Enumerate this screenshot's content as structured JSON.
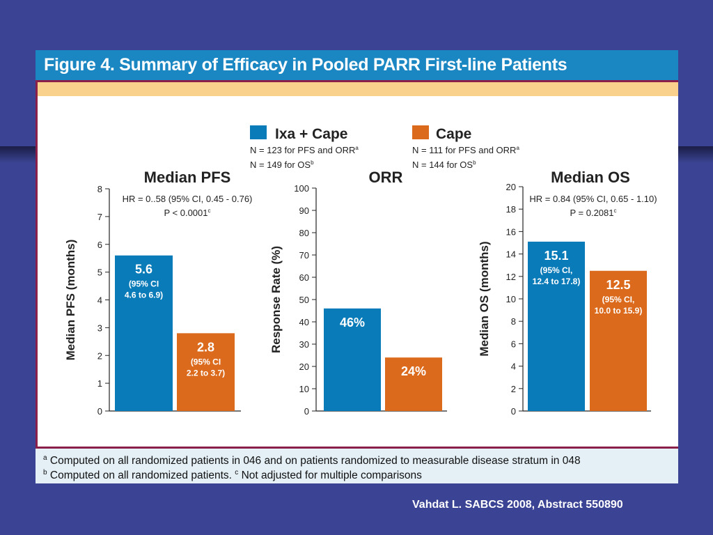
{
  "figure": {
    "title": "Figure 4. Summary of Efficacy in Pooled PARR First-line Patients",
    "footnote_a_mark": "a",
    "footnote_a": "Computed on all randomized patients in 046 and on patients randomized to measurable disease stratum in 048",
    "footnote_b_mark": "b",
    "footnote_b": "Computed on all randomized patients.",
    "footnote_c_mark": "c",
    "footnote_c": "Not adjusted for multiple comparisons"
  },
  "citation": "Vahdat L. SABCS 2008, Abstract 550890",
  "legend": {
    "series1": {
      "name": "Ixa + Cape",
      "note1": "N = 123 for PFS and ORR",
      "note1_mark": "a",
      "note2": "N = 149 for OS",
      "note2_mark": "b"
    },
    "series2": {
      "name": "Cape",
      "note1": "N = 111 for PFS and ORR",
      "note1_mark": "a",
      "note2": "N = 144 for OS",
      "note2_mark": "b"
    }
  },
  "colors": {
    "ixa_cape": "#0a7bb9",
    "cape": "#dc6a1c",
    "title_bar": "#1a87c3",
    "maroon": "#8a1f4a",
    "yellow": "#f9d08c",
    "slide_bg": "#3b4494"
  },
  "chart_data": [
    {
      "type": "bar",
      "title": "Median PFS",
      "ylabel": "Median PFS (months)",
      "xlabel": "",
      "ylim": [
        0,
        8
      ],
      "yticks": [
        0,
        1,
        2,
        3,
        4,
        5,
        6,
        7,
        8
      ],
      "annotation": [
        "HR = 0..58 (95% CI, 0.45 - 0.76)",
        "P  < 0.0001"
      ],
      "annotation_mark": "c",
      "series": [
        {
          "name": "Ixa + Cape",
          "value": 5.6,
          "label": "5.6",
          "ci": [
            "(95% CI",
            "4.6 to 6.9)"
          ]
        },
        {
          "name": "Cape",
          "value": 2.8,
          "label": "2.8",
          "ci": [
            "(95% CI",
            "2.2 to 3.7)"
          ]
        }
      ]
    },
    {
      "type": "bar",
      "title": "ORR",
      "ylabel": "Response Rate (%)",
      "xlabel": "",
      "ylim": [
        0,
        100
      ],
      "yticks": [
        0,
        10,
        20,
        30,
        40,
        50,
        60,
        70,
        80,
        90,
        100
      ],
      "annotation": [],
      "annotation_mark": "",
      "series": [
        {
          "name": "Ixa + Cape",
          "value": 46,
          "label": "46%",
          "ci": []
        },
        {
          "name": "Cape",
          "value": 24,
          "label": "24%",
          "ci": []
        }
      ]
    },
    {
      "type": "bar",
      "title": "Median OS",
      "ylabel": "Median OS (months)",
      "xlabel": "",
      "ylim": [
        0,
        20
      ],
      "yticks": [
        0,
        2,
        4,
        6,
        8,
        10,
        12,
        14,
        16,
        18,
        20
      ],
      "annotation": [
        "HR = 0.84 (95% CI, 0.65 - 1.10)",
        "P = 0.2081"
      ],
      "annotation_mark": "c",
      "series": [
        {
          "name": "Ixa + Cape",
          "value": 15.1,
          "label": "15.1",
          "ci": [
            "(95% CI,",
            "12.4 to 17.8)"
          ]
        },
        {
          "name": "Cape",
          "value": 12.5,
          "label": "12.5",
          "ci": [
            "(95% CI,",
            "10.0 to 15.9)"
          ]
        }
      ]
    }
  ]
}
